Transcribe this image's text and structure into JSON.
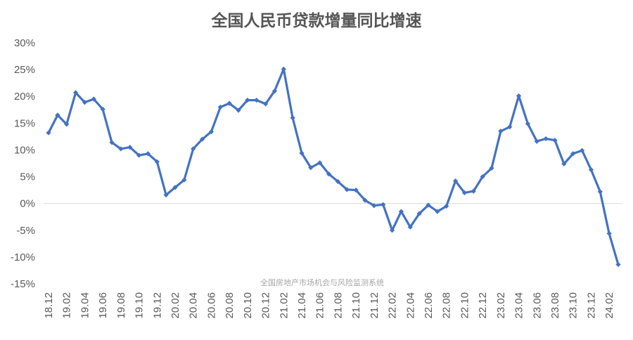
{
  "chart_data": {
    "type": "line",
    "title": "全国人民币贷款增量同比增速",
    "watermark": "全国房地产市场机会与风险监测系统",
    "ylim": [
      -15,
      30
    ],
    "yticks": [
      30,
      25,
      20,
      15,
      10,
      5,
      0,
      -5,
      -10,
      -15
    ],
    "ytick_labels": [
      "30%",
      "25%",
      "20%",
      "15%",
      "10%",
      "5%",
      "0%",
      "-5%",
      "-10%",
      "-15%"
    ],
    "xtick_labels": [
      "18.12",
      "19.02",
      "19.04",
      "19.06",
      "19.08",
      "19.10",
      "19.12",
      "20.02",
      "20.04",
      "20.06",
      "20.08",
      "20.10",
      "20.12",
      "21.02",
      "21.04",
      "21.06",
      "21.08",
      "21.10",
      "21.12",
      "22.02",
      "22.04",
      "22.06",
      "22.08",
      "22.10",
      "22.12",
      "23.02",
      "23.04",
      "23.06",
      "23.08",
      "23.10",
      "23.12",
      "24.02"
    ],
    "color": "#4472c4",
    "grid": false,
    "series": [
      {
        "values": [
          13.2,
          16.5,
          14.8,
          20.7,
          18.9,
          19.5,
          17.6,
          11.4,
          10.2,
          10.5,
          9.0,
          9.3,
          7.8,
          1.6,
          3.0,
          4.4,
          10.2,
          12.0,
          13.4,
          18.0,
          18.7,
          17.4,
          19.3,
          19.3,
          18.6,
          21.0,
          25.1,
          16.0,
          9.4,
          6.7,
          7.6,
          5.5,
          4.1,
          2.6,
          2.5,
          0.6,
          -0.4,
          -0.2,
          -5.0,
          -1.5,
          -4.4,
          -1.9,
          -0.3,
          -1.5,
          -0.5,
          4.2,
          2.0,
          2.3,
          5.0,
          6.6,
          13.5,
          14.3,
          20.1,
          14.9,
          11.6,
          12.1,
          11.8,
          7.4,
          9.3,
          9.9,
          6.3,
          2.2,
          -5.6,
          -11.4
        ]
      }
    ]
  }
}
